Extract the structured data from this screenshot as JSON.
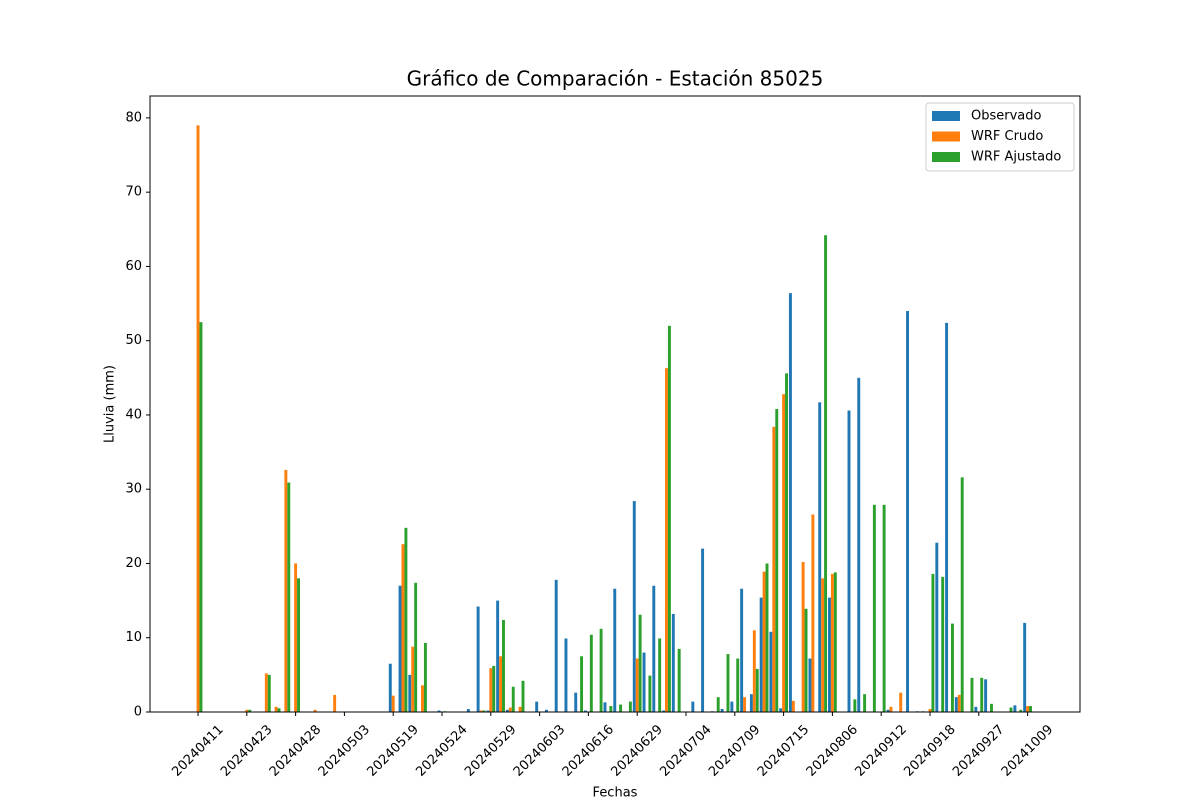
{
  "chart_data": {
    "type": "bar",
    "title": "Gráfico de Comparación - Estación 85025",
    "x_label": "Fechas",
    "y_label": "Lluvia (mm)",
    "categories": [
      "20240411",
      null,
      null,
      null,
      null,
      "20240423",
      null,
      null,
      null,
      null,
      "20240428",
      null,
      null,
      null,
      null,
      "20240503",
      null,
      null,
      null,
      null,
      "20240519",
      null,
      null,
      null,
      null,
      "20240524",
      null,
      null,
      null,
      null,
      "20240529",
      null,
      null,
      null,
      null,
      "20240603",
      null,
      null,
      null,
      null,
      "20240616",
      null,
      null,
      null,
      null,
      "20240629",
      null,
      null,
      null,
      null,
      "20240704",
      null,
      null,
      null,
      null,
      "20240709",
      null,
      null,
      null,
      null,
      "20240715",
      null,
      null,
      null,
      null,
      "20240806",
      null,
      null,
      null,
      null,
      "20240912",
      null,
      null,
      null,
      null,
      "20240918",
      null,
      null,
      null,
      null,
      "20240927",
      null,
      null,
      null,
      null,
      "20241009"
    ],
    "series": [
      {
        "name": "Observado",
        "color": "#1f77b4",
        "values": [
          0,
          0,
          0,
          0,
          0,
          0,
          0,
          0,
          0,
          0,
          0,
          0,
          0,
          0,
          0,
          0,
          0,
          0,
          0,
          0,
          6.5,
          17,
          5,
          0,
          0,
          0.2,
          0,
          0,
          0.4,
          14.2,
          0.2,
          15,
          0.3,
          0,
          0,
          1.4,
          0.3,
          17.8,
          9.9,
          2.6,
          0.2,
          0,
          1.3,
          16.6,
          0,
          28.4,
          8,
          17,
          0.2,
          13.2,
          0,
          1.4,
          22,
          0.1,
          0.4,
          1.4,
          16.6,
          2.4,
          15.4,
          10.8,
          0.5,
          56.4,
          0,
          7.2,
          41.7,
          15.4,
          0,
          40.6,
          45,
          0,
          0,
          0.3,
          0,
          54,
          0.1,
          0,
          22.8,
          52.4,
          2,
          0,
          0.7,
          4.4,
          0,
          0,
          0.9,
          12
        ]
      },
      {
        "name": "WRF Crudo",
        "color": "#ff7f0e",
        "values": [
          79,
          0,
          0,
          0,
          0,
          0.3,
          0,
          5.2,
          0.7,
          32.6,
          20,
          0,
          0.3,
          0,
          2.3,
          0,
          0,
          0,
          0,
          0,
          2.2,
          22.6,
          8.8,
          3.6,
          0,
          0,
          0,
          0,
          0,
          0.2,
          5.9,
          7.5,
          0.6,
          0.7,
          0,
          0,
          0,
          0,
          0,
          0,
          0,
          0,
          0,
          0,
          0,
          7.2,
          0,
          0,
          46.3,
          0,
          0,
          0,
          0,
          0,
          0,
          0,
          2,
          11,
          18.9,
          38.4,
          42.8,
          1.5,
          20.2,
          26.6,
          18,
          18.6,
          0,
          0,
          0,
          0,
          0,
          0.7,
          2.6,
          0,
          0,
          0.4,
          0,
          0,
          2.3,
          0,
          0,
          0,
          0,
          0,
          0,
          0.8
        ]
      },
      {
        "name": "WRF Ajustado",
        "color": "#2ca02c",
        "values": [
          52.5,
          0,
          0,
          0,
          0,
          0.3,
          0,
          5,
          0.5,
          30.9,
          18,
          0,
          0,
          0,
          0,
          0,
          0,
          0,
          0,
          0,
          0,
          24.8,
          17.4,
          9.3,
          0,
          0.1,
          0,
          0,
          0,
          0.2,
          6.2,
          12.4,
          3.4,
          4.2,
          0,
          0,
          0,
          0,
          0,
          7.5,
          10.4,
          11.2,
          0.8,
          1,
          1.4,
          13.1,
          4.9,
          9.9,
          52,
          8.5,
          0,
          0,
          0,
          2,
          7.8,
          7.2,
          0,
          5.8,
          20,
          40.8,
          45.6,
          0,
          13.9,
          0,
          64.2,
          18.8,
          0,
          1.7,
          2.4,
          27.9,
          27.9,
          0,
          0,
          0,
          0.1,
          18.6,
          18.2,
          11.9,
          31.6,
          4.6,
          4.6,
          1.1,
          0,
          0.6,
          0.3,
          0.8
        ]
      }
    ],
    "ylim": [
      0,
      82.95
    ],
    "yticks": [
      0,
      10,
      20,
      30,
      40,
      50,
      60,
      70,
      80
    ],
    "grid": false,
    "legend": "upper right"
  }
}
